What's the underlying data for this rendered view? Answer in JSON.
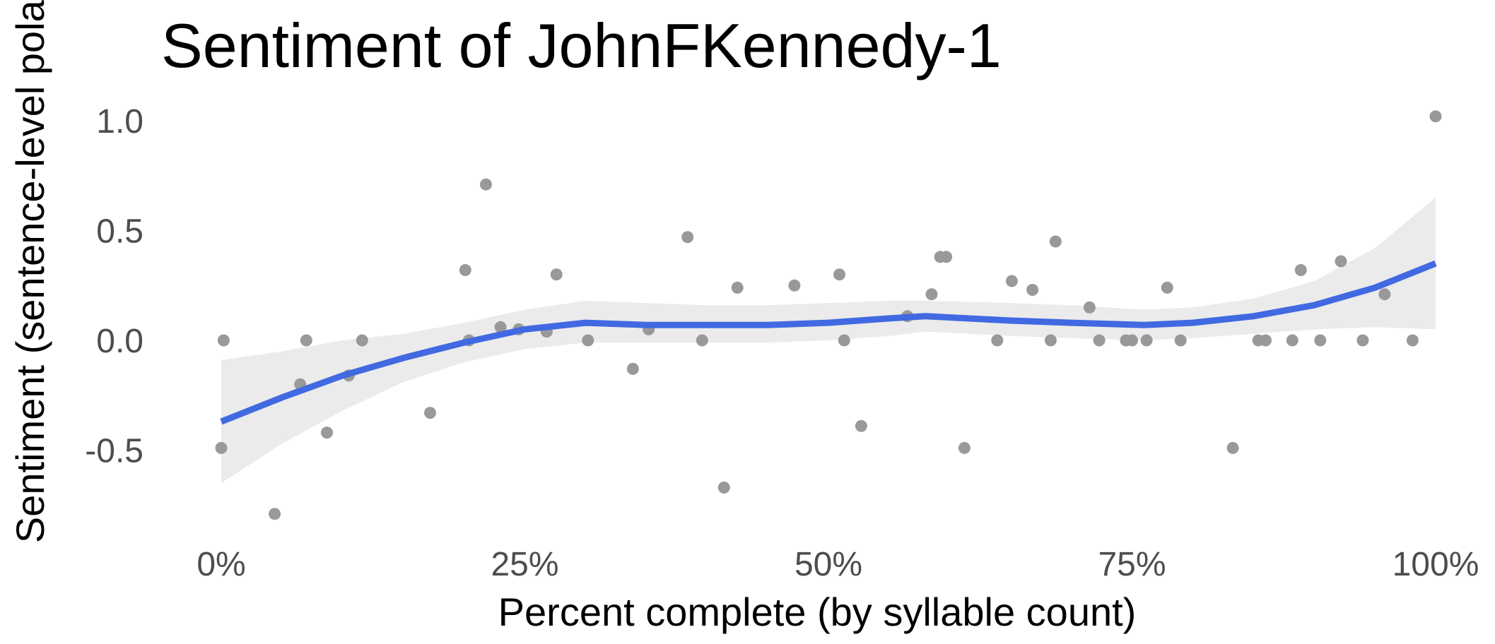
{
  "chart_data": {
    "type": "scatter",
    "title": "Sentiment of JohnFKennedy-1",
    "xlabel": "Percent complete (by syllable count)",
    "ylabel": "Sentiment (sentence-level polarity)",
    "xlim": [
      0,
      1
    ],
    "ylim": [
      -0.82,
      1.07
    ],
    "x_ticks": [
      0,
      0.25,
      0.5,
      0.75,
      1.0
    ],
    "x_tick_labels": [
      "0%",
      "25%",
      "50%",
      "75%",
      "100%"
    ],
    "y_ticks": [
      -0.5,
      0.0,
      0.5,
      1.0
    ],
    "y_tick_labels": [
      "-0.5",
      "0.0",
      "0.5",
      "1.0"
    ],
    "grid": false,
    "point_color": "#999999",
    "line_color": "#4169e1",
    "band_color": "#ebebeb",
    "points": [
      {
        "x": 0.0,
        "y": -0.49
      },
      {
        "x": 0.002,
        "y": 0.0
      },
      {
        "x": 0.044,
        "y": -0.79
      },
      {
        "x": 0.065,
        "y": -0.2
      },
      {
        "x": 0.07,
        "y": 0.0
      },
      {
        "x": 0.087,
        "y": -0.42
      },
      {
        "x": 0.105,
        "y": -0.16
      },
      {
        "x": 0.116,
        "y": 0.0
      },
      {
        "x": 0.172,
        "y": -0.33
      },
      {
        "x": 0.201,
        "y": 0.32
      },
      {
        "x": 0.204,
        "y": 0.0
      },
      {
        "x": 0.218,
        "y": 0.71
      },
      {
        "x": 0.23,
        "y": 0.06
      },
      {
        "x": 0.245,
        "y": 0.05
      },
      {
        "x": 0.268,
        "y": 0.04
      },
      {
        "x": 0.276,
        "y": 0.3
      },
      {
        "x": 0.302,
        "y": 0.0
      },
      {
        "x": 0.339,
        "y": -0.13
      },
      {
        "x": 0.352,
        "y": 0.05
      },
      {
        "x": 0.384,
        "y": 0.47
      },
      {
        "x": 0.396,
        "y": 0.0
      },
      {
        "x": 0.414,
        "y": -0.67
      },
      {
        "x": 0.425,
        "y": 0.24
      },
      {
        "x": 0.472,
        "y": 0.25
      },
      {
        "x": 0.509,
        "y": 0.3
      },
      {
        "x": 0.513,
        "y": 0.0
      },
      {
        "x": 0.527,
        "y": -0.39
      },
      {
        "x": 0.565,
        "y": 0.11
      },
      {
        "x": 0.585,
        "y": 0.21
      },
      {
        "x": 0.592,
        "y": 0.38
      },
      {
        "x": 0.597,
        "y": 0.38
      },
      {
        "x": 0.612,
        "y": -0.49
      },
      {
        "x": 0.639,
        "y": 0.0
      },
      {
        "x": 0.651,
        "y": 0.27
      },
      {
        "x": 0.668,
        "y": 0.23
      },
      {
        "x": 0.683,
        "y": 0.0
      },
      {
        "x": 0.687,
        "y": 0.45
      },
      {
        "x": 0.715,
        "y": 0.15
      },
      {
        "x": 0.723,
        "y": 0.0
      },
      {
        "x": 0.745,
        "y": 0.0
      },
      {
        "x": 0.75,
        "y": 0.0
      },
      {
        "x": 0.762,
        "y": 0.0
      },
      {
        "x": 0.779,
        "y": 0.24
      },
      {
        "x": 0.79,
        "y": 0.0
      },
      {
        "x": 0.833,
        "y": -0.49
      },
      {
        "x": 0.854,
        "y": 0.0
      },
      {
        "x": 0.86,
        "y": 0.0
      },
      {
        "x": 0.882,
        "y": 0.0
      },
      {
        "x": 0.889,
        "y": 0.32
      },
      {
        "x": 0.905,
        "y": 0.0
      },
      {
        "x": 0.922,
        "y": 0.36
      },
      {
        "x": 0.94,
        "y": 0.0
      },
      {
        "x": 0.958,
        "y": 0.21
      },
      {
        "x": 0.981,
        "y": 0.0
      },
      {
        "x": 1.0,
        "y": 1.02
      }
    ],
    "smooth": {
      "x": [
        0.0,
        0.05,
        0.1,
        0.15,
        0.2,
        0.25,
        0.3,
        0.35,
        0.4,
        0.45,
        0.5,
        0.55,
        0.58,
        0.65,
        0.7,
        0.76,
        0.8,
        0.85,
        0.9,
        0.95,
        1.0
      ],
      "y": [
        -0.37,
        -0.26,
        -0.16,
        -0.08,
        -0.01,
        0.05,
        0.08,
        0.07,
        0.07,
        0.07,
        0.08,
        0.1,
        0.11,
        0.09,
        0.08,
        0.07,
        0.08,
        0.11,
        0.16,
        0.24,
        0.35
      ],
      "lower": [
        -0.65,
        -0.47,
        -0.32,
        -0.19,
        -0.1,
        -0.04,
        -0.01,
        -0.01,
        -0.01,
        -0.01,
        0.0,
        0.02,
        0.04,
        0.02,
        0.01,
        0.0,
        0.01,
        0.03,
        0.05,
        0.06,
        0.05
      ],
      "upper": [
        -0.09,
        -0.05,
        0.0,
        0.03,
        0.08,
        0.14,
        0.18,
        0.17,
        0.16,
        0.16,
        0.17,
        0.18,
        0.18,
        0.17,
        0.16,
        0.14,
        0.15,
        0.19,
        0.27,
        0.42,
        0.65
      ]
    }
  }
}
